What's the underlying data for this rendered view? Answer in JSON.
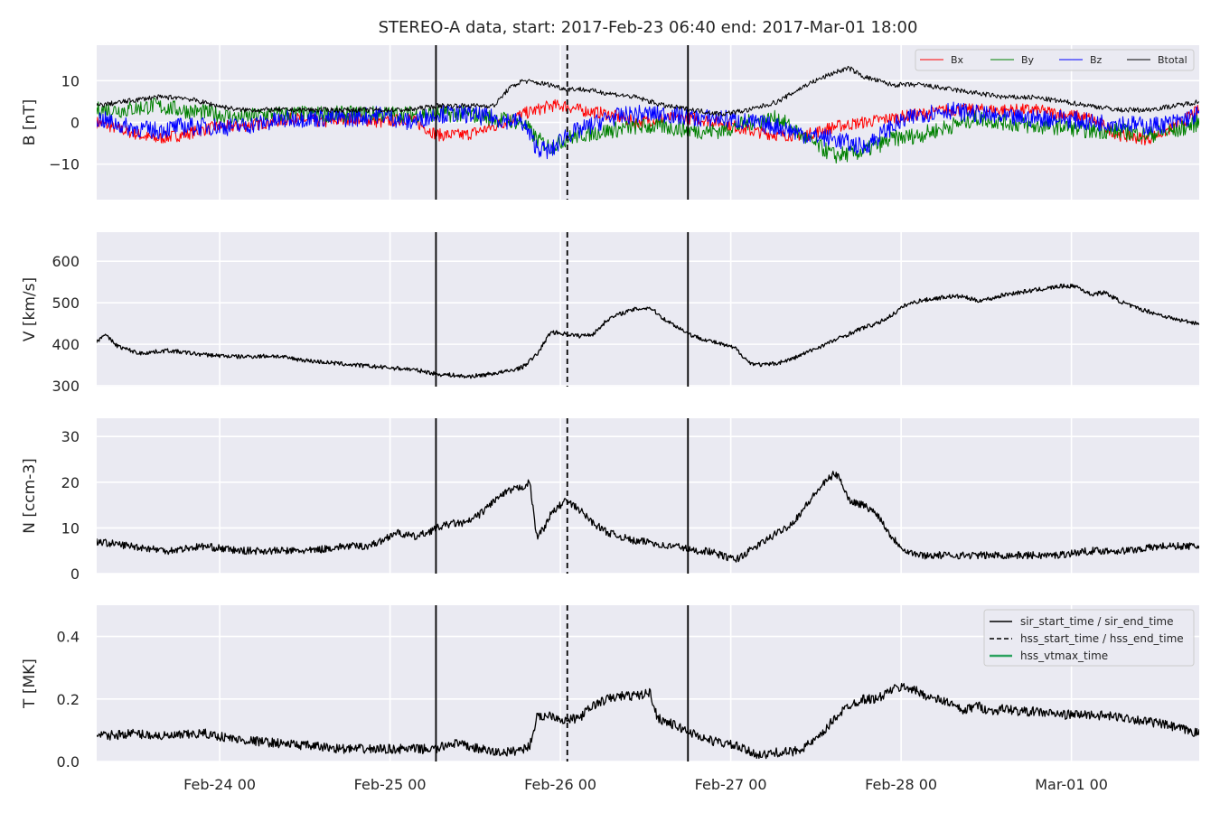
{
  "figure": {
    "title": "STEREO-A data, start: 2017-Feb-23 06:40  end: 2017-Mar-01 18:00",
    "x_ticks": [
      "Feb-24 00",
      "Feb-25 00",
      "Feb-26 00",
      "Feb-27 00",
      "Feb-28 00",
      "Mar-01 00"
    ],
    "x_tick_hours": [
      17.33,
      41.33,
      65.33,
      89.33,
      113.33,
      137.33
    ],
    "x_range_hours": [
      0,
      155.33
    ],
    "x_axis_note": "x values are hours after the plot start time printed in the title",
    "event_markers": [
      {
        "label": "sir_start_time",
        "hour": 47.8,
        "style": "solid"
      },
      {
        "label": "hss_start_time",
        "hour": 66.3,
        "style": "dashed"
      },
      {
        "label": "sir_end_time",
        "hour": 83.3,
        "style": "solid"
      }
    ]
  },
  "colors": {
    "background": "#eaeaf2",
    "grid": "#ffffff",
    "text": "#262626",
    "bx": "#ff0000",
    "by": "#008000",
    "bz": "#0000ff",
    "btotal": "#000000",
    "hss_vtmax": "#2ca25f"
  },
  "chart_data": [
    {
      "type": "line",
      "ylabel": "B [nT]",
      "ylim": [
        -18.5,
        18.5
      ],
      "yticks": [
        "10",
        "0",
        "−10"
      ],
      "ytick_values": [
        10,
        0,
        -10
      ],
      "grid": true,
      "legend_position": "top-right",
      "legend": [
        "Bx",
        "By",
        "Bz",
        "Btotal"
      ],
      "series": [
        {
          "name": "Bx",
          "color_key": "bx",
          "noise": 1.5,
          "x": [
            0,
            4,
            8,
            12,
            17,
            20,
            24,
            28,
            32,
            36,
            40,
            44,
            48,
            52,
            56,
            60,
            62,
            64,
            66,
            68,
            72,
            76,
            80,
            84,
            88,
            92,
            96,
            100,
            104,
            108,
            112,
            116,
            120,
            124,
            128,
            132,
            136,
            140,
            144,
            148,
            152,
            155.33
          ],
          "values": [
            0,
            -2,
            -4,
            -3,
            -1,
            -1,
            0,
            1,
            0,
            1,
            0,
            1,
            -3,
            -3,
            -1,
            2,
            3,
            4,
            4,
            3,
            2,
            0,
            1,
            1,
            0,
            -2,
            -3,
            -3,
            -1,
            0,
            1,
            2,
            3,
            3,
            3,
            3,
            2,
            1,
            -3,
            -4,
            -1,
            3
          ]
        },
        {
          "name": "By",
          "color_key": "by",
          "noise": 2.0,
          "x": [
            0,
            4,
            8,
            12,
            17,
            20,
            24,
            28,
            32,
            36,
            40,
            44,
            48,
            52,
            56,
            60,
            62,
            64,
            66,
            68,
            72,
            76,
            80,
            84,
            88,
            92,
            96,
            100,
            104,
            108,
            112,
            116,
            120,
            124,
            128,
            132,
            136,
            140,
            144,
            148,
            152,
            155.33
          ],
          "values": [
            3,
            3,
            4,
            3,
            2,
            1,
            2,
            2,
            2,
            2,
            2,
            2,
            2,
            2,
            1,
            0,
            -4,
            -6,
            -4,
            -3,
            -2,
            -1,
            -1,
            -2,
            -2,
            0,
            1,
            -4,
            -8,
            -7,
            -4,
            -3,
            -1,
            1,
            0,
            -1,
            -1,
            -2,
            -2,
            -3,
            -2,
            0
          ]
        },
        {
          "name": "Bz",
          "color_key": "bz",
          "noise": 2.2,
          "x": [
            0,
            4,
            8,
            12,
            17,
            20,
            24,
            28,
            32,
            36,
            40,
            44,
            48,
            52,
            56,
            60,
            62,
            64,
            66,
            68,
            72,
            76,
            80,
            84,
            88,
            92,
            96,
            100,
            104,
            108,
            112,
            116,
            120,
            124,
            128,
            132,
            136,
            140,
            144,
            148,
            152,
            155.33
          ],
          "values": [
            1,
            -1,
            -2,
            -1,
            -1,
            -1,
            0,
            1,
            1,
            1,
            2,
            0,
            2,
            2,
            1,
            0,
            -6,
            -7,
            -3,
            -2,
            1,
            2,
            2,
            1,
            1,
            0,
            -1,
            -3,
            -4,
            -6,
            -1,
            2,
            3,
            2,
            1,
            1,
            1,
            0,
            0,
            -1,
            0,
            2
          ]
        },
        {
          "name": "Btotal",
          "color_key": "btotal",
          "noise": 0.6,
          "x": [
            0,
            4,
            8,
            12,
            17,
            20,
            24,
            28,
            32,
            36,
            40,
            44,
            48,
            52,
            56,
            58,
            60,
            64,
            66,
            68,
            72,
            76,
            80,
            84,
            88,
            92,
            96,
            100,
            104,
            106,
            108,
            112,
            116,
            120,
            124,
            128,
            132,
            136,
            140,
            144,
            148,
            152,
            155.33
          ],
          "values": [
            4,
            5,
            6,
            6,
            4,
            3,
            3,
            3,
            3,
            3,
            3,
            3,
            4,
            4,
            4,
            8,
            10,
            9,
            8,
            8,
            7,
            6,
            4,
            3,
            2,
            3,
            5,
            9,
            12,
            13,
            11,
            9,
            9,
            8,
            7,
            6,
            6,
            5,
            4,
            3,
            3,
            4,
            5
          ]
        }
      ]
    },
    {
      "type": "line",
      "ylabel": "V [km/s]",
      "ylim": [
        298,
        670
      ],
      "yticks": [
        "600",
        "500",
        "400",
        "300"
      ],
      "ytick_values": [
        600,
        500,
        400,
        300
      ],
      "grid": true,
      "series": [
        {
          "name": "",
          "color_key": "btotal",
          "noise": 5,
          "x": [
            0,
            1,
            3,
            6,
            10,
            15,
            20,
            25,
            30,
            35,
            40,
            44,
            46,
            48,
            50,
            52,
            54,
            56,
            58,
            60,
            61,
            62,
            64,
            66,
            68,
            70,
            72,
            74,
            76,
            78,
            80,
            82,
            84,
            86,
            88,
            90,
            92,
            94,
            96,
            98,
            100,
            102,
            104,
            106,
            108,
            110,
            112,
            114,
            116,
            118,
            120,
            122,
            124,
            126,
            128,
            130,
            132,
            134,
            136,
            138,
            140,
            142,
            144,
            146,
            148,
            150,
            152,
            155.33
          ],
          "values": [
            405,
            425,
            395,
            378,
            385,
            375,
            370,
            372,
            360,
            352,
            345,
            340,
            335,
            328,
            326,
            322,
            325,
            330,
            335,
            345,
            360,
            375,
            430,
            425,
            420,
            425,
            460,
            475,
            485,
            488,
            460,
            440,
            420,
            410,
            400,
            390,
            355,
            350,
            355,
            365,
            380,
            395,
            410,
            425,
            440,
            450,
            470,
            495,
            505,
            510,
            515,
            515,
            505,
            510,
            520,
            525,
            530,
            535,
            540,
            540,
            520,
            525,
            505,
            490,
            480,
            470,
            460,
            450
          ]
        }
      ]
    },
    {
      "type": "line",
      "ylabel": "N [ccm-3]",
      "ylim": [
        0,
        34
      ],
      "yticks": [
        "30",
        "20",
        "10",
        "0"
      ],
      "ytick_values": [
        30,
        20,
        10,
        0
      ],
      "grid": true,
      "series": [
        {
          "name": "",
          "color_key": "btotal",
          "noise": 0.8,
          "x": [
            0,
            5,
            10,
            15,
            20,
            25,
            30,
            35,
            38,
            40,
            42,
            45,
            48,
            50,
            52,
            54,
            56,
            58,
            60,
            61,
            62,
            63,
            64,
            66,
            68,
            70,
            72,
            74,
            76,
            78,
            80,
            82,
            84,
            86,
            88,
            90,
            92,
            94,
            96,
            98,
            100,
            102,
            104,
            105,
            106,
            108,
            110,
            112,
            114,
            116,
            120,
            125,
            130,
            135,
            140,
            145,
            150,
            155.33
          ],
          "values": [
            7,
            6,
            5,
            6,
            5,
            5,
            5,
            6,
            6,
            7,
            9,
            8,
            10,
            11,
            11,
            13,
            16,
            18,
            19,
            20,
            8,
            10,
            13,
            16,
            14,
            11,
            9,
            8,
            7,
            7,
            6,
            6,
            5,
            5,
            4,
            3,
            5,
            7,
            9,
            11,
            15,
            19,
            22,
            20,
            16,
            15,
            13,
            8,
            5,
            4,
            4,
            4,
            4,
            4,
            5,
            5,
            6,
            6
          ]
        }
      ]
    },
    {
      "type": "line",
      "ylabel": "T [MK]",
      "ylim": [
        0,
        0.5
      ],
      "yticks": [
        "0.4",
        "0.2",
        "0.0"
      ],
      "ytick_values": [
        0.4,
        0.2,
        0.0
      ],
      "grid": true,
      "legend_position": "top-right",
      "legend": [
        "sir_start_time / sir_end_time",
        "hss_start_time / hss_end_time",
        "hss_vtmax_time"
      ],
      "series": [
        {
          "name": "",
          "color_key": "btotal",
          "noise": 0.015,
          "x": [
            0,
            5,
            10,
            15,
            20,
            25,
            30,
            35,
            40,
            45,
            48,
            50,
            52,
            54,
            56,
            58,
            60,
            61,
            62,
            64,
            66,
            68,
            70,
            72,
            74,
            76,
            78,
            79,
            80,
            82,
            84,
            86,
            88,
            90,
            92,
            94,
            96,
            98,
            100,
            102,
            104,
            106,
            108,
            110,
            112,
            114,
            116,
            118,
            120,
            122,
            124,
            126,
            128,
            130,
            132,
            136,
            140,
            145,
            150,
            155.33
          ],
          "values": [
            0.08,
            0.09,
            0.08,
            0.09,
            0.07,
            0.06,
            0.05,
            0.04,
            0.04,
            0.04,
            0.04,
            0.06,
            0.05,
            0.04,
            0.03,
            0.03,
            0.04,
            0.05,
            0.14,
            0.15,
            0.13,
            0.14,
            0.18,
            0.2,
            0.21,
            0.21,
            0.22,
            0.14,
            0.13,
            0.11,
            0.09,
            0.07,
            0.06,
            0.05,
            0.03,
            0.02,
            0.03,
            0.03,
            0.05,
            0.08,
            0.14,
            0.18,
            0.2,
            0.2,
            0.23,
            0.24,
            0.22,
            0.2,
            0.19,
            0.16,
            0.18,
            0.16,
            0.17,
            0.16,
            0.16,
            0.15,
            0.15,
            0.14,
            0.12,
            0.09
          ]
        }
      ]
    }
  ]
}
